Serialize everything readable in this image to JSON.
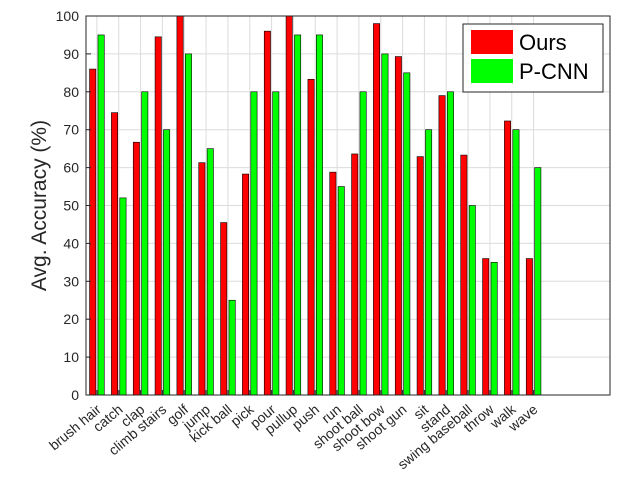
{
  "chart_data": {
    "type": "bar",
    "categories": [
      "brush hair",
      "catch",
      "clap",
      "climb stairs",
      "golf",
      "jump",
      "kick ball",
      "pick",
      "pour",
      "pullup",
      "push",
      "run",
      "shoot ball",
      "shoot bow",
      "shoot gun",
      "sit",
      "stand",
      "swing baseball",
      "throw",
      "walk",
      "wave"
    ],
    "series": [
      {
        "name": "Ours",
        "color": "#ff0000",
        "values": [
          86,
          74.5,
          66.7,
          94.5,
          100,
          61.3,
          45.5,
          58.3,
          96,
          100,
          83.3,
          58.8,
          63.6,
          98,
          89.3,
          62.9,
          79,
          63.3,
          36,
          72.3,
          36
        ]
      },
      {
        "name": "P-CNN",
        "color": "#00ff00",
        "values": [
          95,
          52,
          80,
          70,
          90,
          65,
          25,
          80,
          80,
          95,
          95,
          55,
          80,
          90,
          85,
          70,
          80,
          50,
          35,
          70,
          60
        ]
      }
    ],
    "title": "",
    "xlabel": "",
    "ylabel": "Avg. Accuracy (%)",
    "ylim": [
      0,
      100
    ],
    "yticks": [
      "0",
      "10",
      "20",
      "30",
      "40",
      "50",
      "60",
      "70",
      "80",
      "90",
      "100"
    ],
    "grid": true,
    "legend_position": "top-right"
  }
}
